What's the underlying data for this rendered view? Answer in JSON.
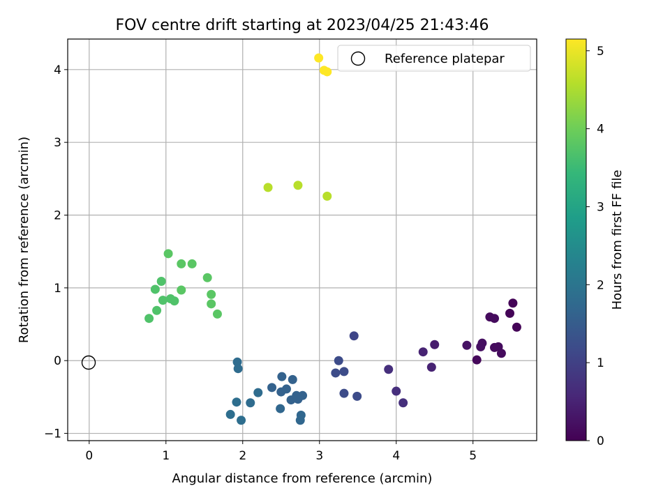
{
  "chart_data": {
    "type": "scatter",
    "title": "FOV centre drift starting at 2023/04/25 21:43:46",
    "xlabel": "Angular distance from reference (arcmin)",
    "ylabel": "Rotation from reference (arcmin)",
    "xlim": [
      -0.28,
      5.83
    ],
    "ylim": [
      -1.1,
      4.42
    ],
    "x_ticks": [
      0,
      1,
      2,
      3,
      4,
      5
    ],
    "y_ticks": [
      -1,
      0,
      1,
      2,
      3,
      4
    ],
    "grid": true,
    "legend": {
      "placement": "top-right",
      "entries": [
        "Reference platepar"
      ]
    },
    "reference_point": {
      "x": 0,
      "y": 0
    },
    "colorbar": {
      "label": "Hours from first FF file",
      "range": [
        0,
        5.15
      ],
      "ticks": [
        0,
        1,
        2,
        3,
        4,
        5
      ],
      "colormap": "viridis",
      "stops": [
        "#440154",
        "#482878",
        "#3e4989",
        "#31688e",
        "#26828e",
        "#1f9e89",
        "#35b779",
        "#6ece58",
        "#b5de2b",
        "#fde725"
      ]
    },
    "series": [
      {
        "points": [
          {
            "x": 5.48,
            "y": 0.65,
            "c": 0.05
          },
          {
            "x": 5.52,
            "y": 0.79,
            "c": 0.05
          },
          {
            "x": 5.57,
            "y": 0.46,
            "c": 0.05
          },
          {
            "x": 5.22,
            "y": 0.6,
            "c": 0.15
          },
          {
            "x": 5.28,
            "y": 0.58,
            "c": 0.15
          },
          {
            "x": 5.05,
            "y": 0.01,
            "c": 0.1
          },
          {
            "x": 5.12,
            "y": 0.24,
            "c": 0.2
          },
          {
            "x": 5.1,
            "y": 0.19,
            "c": 0.2
          },
          {
            "x": 5.28,
            "y": 0.18,
            "c": 0.15
          },
          {
            "x": 5.33,
            "y": 0.19,
            "c": 0.15
          },
          {
            "x": 5.37,
            "y": 0.1,
            "c": 0.15
          },
          {
            "x": 4.92,
            "y": 0.21,
            "c": 0.25
          },
          {
            "x": 4.5,
            "y": 0.22,
            "c": 0.4
          },
          {
            "x": 4.35,
            "y": 0.12,
            "c": 0.5
          },
          {
            "x": 4.46,
            "y": -0.09,
            "c": 0.5
          },
          {
            "x": 4.0,
            "y": -0.42,
            "c": 0.7
          },
          {
            "x": 3.9,
            "y": -0.12,
            "c": 0.7
          },
          {
            "x": 4.09,
            "y": -0.58,
            "c": 0.7
          },
          {
            "x": 3.45,
            "y": 0.34,
            "c": 1.1
          },
          {
            "x": 3.25,
            "y": 0.0,
            "c": 1.2
          },
          {
            "x": 3.21,
            "y": -0.17,
            "c": 1.2
          },
          {
            "x": 3.32,
            "y": -0.15,
            "c": 1.2
          },
          {
            "x": 3.32,
            "y": -0.45,
            "c": 1.2
          },
          {
            "x": 3.49,
            "y": -0.49,
            "c": 1.2
          },
          {
            "x": 2.51,
            "y": -0.22,
            "c": 1.6
          },
          {
            "x": 2.65,
            "y": -0.26,
            "c": 1.6
          },
          {
            "x": 2.38,
            "y": -0.37,
            "c": 1.6
          },
          {
            "x": 2.5,
            "y": -0.43,
            "c": 1.6
          },
          {
            "x": 2.57,
            "y": -0.39,
            "c": 1.6
          },
          {
            "x": 2.63,
            "y": -0.54,
            "c": 1.6
          },
          {
            "x": 2.7,
            "y": -0.48,
            "c": 1.6
          },
          {
            "x": 2.72,
            "y": -0.53,
            "c": 1.6
          },
          {
            "x": 2.78,
            "y": -0.48,
            "c": 1.6
          },
          {
            "x": 2.49,
            "y": -0.66,
            "c": 1.7
          },
          {
            "x": 2.76,
            "y": -0.75,
            "c": 1.7
          },
          {
            "x": 2.75,
            "y": -0.82,
            "c": 1.7
          },
          {
            "x": 2.2,
            "y": -0.44,
            "c": 1.8
          },
          {
            "x": 2.1,
            "y": -0.58,
            "c": 1.8
          },
          {
            "x": 1.93,
            "y": -0.02,
            "c": 1.8
          },
          {
            "x": 1.94,
            "y": -0.11,
            "c": 1.8
          },
          {
            "x": 1.92,
            "y": -0.57,
            "c": 1.85
          },
          {
            "x": 1.84,
            "y": -0.74,
            "c": 1.85
          },
          {
            "x": 1.98,
            "y": -0.82,
            "c": 1.85
          },
          {
            "x": 1.03,
            "y": 1.47,
            "c": 3.8
          },
          {
            "x": 1.2,
            "y": 1.33,
            "c": 3.8
          },
          {
            "x": 1.34,
            "y": 1.33,
            "c": 3.8
          },
          {
            "x": 1.54,
            "y": 1.14,
            "c": 3.8
          },
          {
            "x": 0.94,
            "y": 1.09,
            "c": 3.7
          },
          {
            "x": 0.86,
            "y": 0.98,
            "c": 3.7
          },
          {
            "x": 1.2,
            "y": 0.97,
            "c": 3.8
          },
          {
            "x": 1.59,
            "y": 0.91,
            "c": 3.8
          },
          {
            "x": 1.06,
            "y": 0.85,
            "c": 3.7
          },
          {
            "x": 0.96,
            "y": 0.83,
            "c": 3.7
          },
          {
            "x": 1.11,
            "y": 0.82,
            "c": 3.7
          },
          {
            "x": 1.59,
            "y": 0.78,
            "c": 3.8
          },
          {
            "x": 0.88,
            "y": 0.69,
            "c": 3.7
          },
          {
            "x": 1.67,
            "y": 0.64,
            "c": 3.8
          },
          {
            "x": 0.78,
            "y": 0.58,
            "c": 3.7
          },
          {
            "x": 2.33,
            "y": 2.38,
            "c": 4.6
          },
          {
            "x": 2.72,
            "y": 2.41,
            "c": 4.6
          },
          {
            "x": 3.1,
            "y": 2.26,
            "c": 4.6
          },
          {
            "x": 2.99,
            "y": 4.16,
            "c": 5.15
          },
          {
            "x": 3.06,
            "y": 3.99,
            "c": 5.15
          },
          {
            "x": 3.1,
            "y": 3.97,
            "c": 5.15
          }
        ]
      }
    ]
  }
}
